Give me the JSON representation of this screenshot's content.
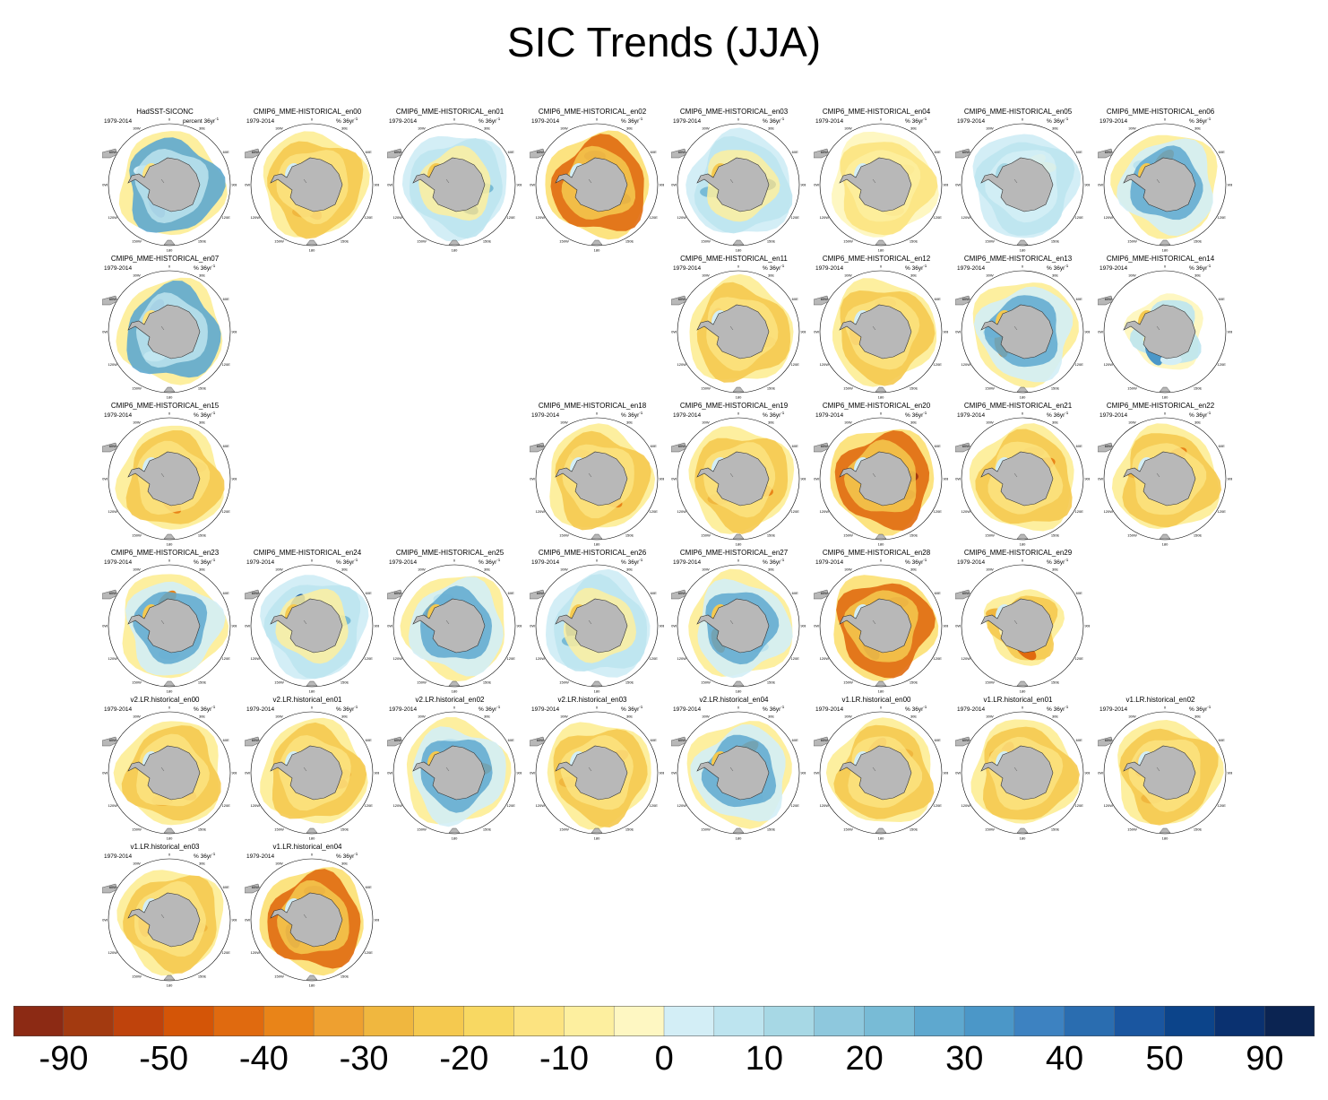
{
  "chart_data": {
    "type": "heatmap",
    "title": "SIC Trends (JJA)",
    "panel_period": "1979-2014",
    "longitude_labels": [
      "0",
      "30E",
      "60E",
      "90E",
      "120E",
      "150E",
      "180",
      "150W",
      "120W",
      "90W",
      "60W",
      "30W"
    ],
    "panels": [
      {
        "row": 0,
        "col": 0,
        "title": "HadSST-SICONC",
        "units": "percent 36yr",
        "pattern": "blue-ring"
      },
      {
        "row": 0,
        "col": 1,
        "title": "CMIP6_MME-HISTORICAL_en00",
        "units": "% 36yr",
        "pattern": "orange-ring"
      },
      {
        "row": 0,
        "col": 2,
        "title": "CMIP6_MME-HISTORICAL_en01",
        "units": "% 36yr",
        "pattern": "mixed-blue"
      },
      {
        "row": 0,
        "col": 3,
        "title": "CMIP6_MME-HISTORICAL_en02",
        "units": "% 36yr",
        "pattern": "strong-red"
      },
      {
        "row": 0,
        "col": 4,
        "title": "CMIP6_MME-HISTORICAL_en03",
        "units": "% 36yr",
        "pattern": "mixed-blue"
      },
      {
        "row": 0,
        "col": 5,
        "title": "CMIP6_MME-HISTORICAL_en04",
        "units": "% 36yr",
        "pattern": "yellow"
      },
      {
        "row": 0,
        "col": 6,
        "title": "CMIP6_MME-HISTORICAL_en05",
        "units": "% 36yr",
        "pattern": "light-blue"
      },
      {
        "row": 0,
        "col": 7,
        "title": "CMIP6_MME-HISTORICAL_en06",
        "units": "% 36yr",
        "pattern": "mixed"
      },
      {
        "row": 1,
        "col": 0,
        "title": "CMIP6_MME-HISTORICAL_en07",
        "units": "% 36yr",
        "pattern": "blue-ring"
      },
      {
        "row": 1,
        "col": 4,
        "title": "CMIP6_MME-HISTORICAL_en11",
        "units": "% 36yr",
        "pattern": "orange-ring"
      },
      {
        "row": 1,
        "col": 5,
        "title": "CMIP6_MME-HISTORICAL_en12",
        "units": "% 36yr",
        "pattern": "orange-ring"
      },
      {
        "row": 1,
        "col": 6,
        "title": "CMIP6_MME-HISTORICAL_en13",
        "units": "% 36yr",
        "pattern": "mixed"
      },
      {
        "row": 1,
        "col": 7,
        "title": "CMIP6_MME-HISTORICAL_en14",
        "units": "% 36yr",
        "pattern": "small-mixed"
      },
      {
        "row": 2,
        "col": 0,
        "title": "CMIP6_MME-HISTORICAL_en15",
        "units": "% 36yr",
        "pattern": "orange-ring"
      },
      {
        "row": 2,
        "col": 3,
        "title": "CMIP6_MME-HISTORICAL_en18",
        "units": "% 36yr",
        "pattern": "orange-ring"
      },
      {
        "row": 2,
        "col": 4,
        "title": "CMIP6_MME-HISTORICAL_en19",
        "units": "% 36yr",
        "pattern": "orange-ring"
      },
      {
        "row": 2,
        "col": 5,
        "title": "CMIP6_MME-HISTORICAL_en20",
        "units": "% 36yr",
        "pattern": "strong-red"
      },
      {
        "row": 2,
        "col": 6,
        "title": "CMIP6_MME-HISTORICAL_en21",
        "units": "% 36yr",
        "pattern": "orange-ring"
      },
      {
        "row": 2,
        "col": 7,
        "title": "CMIP6_MME-HISTORICAL_en22",
        "units": "% 36yr",
        "pattern": "orange-ring"
      },
      {
        "row": 3,
        "col": 0,
        "title": "CMIP6_MME-HISTORICAL_en23",
        "units": "% 36yr",
        "pattern": "mixed"
      },
      {
        "row": 3,
        "col": 1,
        "title": "CMIP6_MME-HISTORICAL_en24",
        "units": "% 36yr",
        "pattern": "mixed-blue"
      },
      {
        "row": 3,
        "col": 2,
        "title": "CMIP6_MME-HISTORICAL_en25",
        "units": "% 36yr",
        "pattern": "mixed"
      },
      {
        "row": 3,
        "col": 3,
        "title": "CMIP6_MME-HISTORICAL_en26",
        "units": "% 36yr",
        "pattern": "mixed-blue"
      },
      {
        "row": 3,
        "col": 4,
        "title": "CMIP6_MME-HISTORICAL_en27",
        "units": "% 36yr",
        "pattern": "mixed"
      },
      {
        "row": 3,
        "col": 5,
        "title": "CMIP6_MME-HISTORICAL_en28",
        "units": "% 36yr",
        "pattern": "strong-red"
      },
      {
        "row": 3,
        "col": 6,
        "title": "CMIP6_MME-HISTORICAL_en29",
        "units": "% 36yr",
        "pattern": "small-orange"
      },
      {
        "row": 4,
        "col": 0,
        "title": "v2.LR.historical_en00",
        "units": "% 36yr",
        "pattern": "orange-ring"
      },
      {
        "row": 4,
        "col": 1,
        "title": "v2.LR.historical_en01",
        "units": "% 36yr",
        "pattern": "orange-ring"
      },
      {
        "row": 4,
        "col": 2,
        "title": "v2.LR.historical_en02",
        "units": "% 36yr",
        "pattern": "mixed"
      },
      {
        "row": 4,
        "col": 3,
        "title": "v2.LR.historical_en03",
        "units": "% 36yr",
        "pattern": "orange-ring"
      },
      {
        "row": 4,
        "col": 4,
        "title": "v2.LR.historical_en04",
        "units": "% 36yr",
        "pattern": "mixed"
      },
      {
        "row": 4,
        "col": 5,
        "title": "v1.LR.historical_en00",
        "units": "% 36yr",
        "pattern": "orange-ring"
      },
      {
        "row": 4,
        "col": 6,
        "title": "v1.LR.historical_en01",
        "units": "% 36yr",
        "pattern": "orange-ring"
      },
      {
        "row": 4,
        "col": 7,
        "title": "v1.LR.historical_en02",
        "units": "% 36yr",
        "pattern": "orange-ring"
      },
      {
        "row": 5,
        "col": 0,
        "title": "v1.LR.historical_en03",
        "units": "% 36yr",
        "pattern": "orange-ring"
      },
      {
        "row": 5,
        "col": 1,
        "title": "v1.LR.historical_en04",
        "units": "% 36yr",
        "pattern": "strong-red"
      }
    ],
    "colorbar": {
      "colors": [
        "#8c2a14",
        "#a33a10",
        "#bf430c",
        "#d45507",
        "#e06a0f",
        "#e98418",
        "#eea030",
        "#f0b73f",
        "#f5c94f",
        "#f8d862",
        "#fce380",
        "#fdef9f",
        "#fef7c2",
        "#d3eef6",
        "#bde4ef",
        "#a7d8e5",
        "#8ec8dd",
        "#78bbd6",
        "#5ea8cf",
        "#4b97c8",
        "#3d82c1",
        "#2a6db0",
        "#1a56a0",
        "#0c448a",
        "#0a3170",
        "#0b2452"
      ],
      "tick_labels": [
        "-90",
        "-50",
        "-40",
        "-30",
        "-20",
        "-10",
        "0",
        "10",
        "20",
        "30",
        "40",
        "50",
        "90"
      ]
    }
  }
}
